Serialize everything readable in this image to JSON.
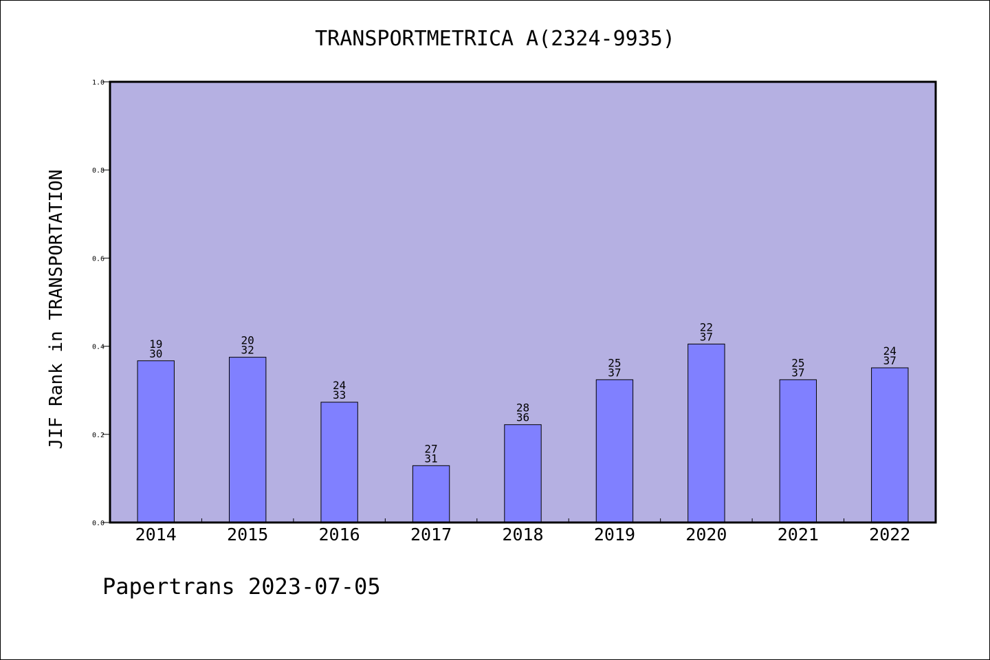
{
  "chart_data": {
    "type": "bar",
    "title": "TRANSPORTMETRICA A(2324-9935)",
    "ylabel": "JIF Rank in TRANSPORTATION",
    "xlabel": "",
    "categories": [
      "2014",
      "2015",
      "2016",
      "2017",
      "2018",
      "2019",
      "2020",
      "2021",
      "2022"
    ],
    "values": [
      0.367,
      0.375,
      0.273,
      0.129,
      0.222,
      0.324,
      0.405,
      0.324,
      0.351
    ],
    "ranks": [
      "19",
      "20",
      "24",
      "27",
      "28",
      "25",
      "22",
      "25",
      "24"
    ],
    "totals": [
      "30",
      "32",
      "33",
      "31",
      "36",
      "37",
      "37",
      "37",
      "37"
    ],
    "ylim": [
      0,
      1.0
    ],
    "yticks": [
      "0.0",
      "0.2",
      "0.4",
      "0.6",
      "0.8",
      "1.0"
    ],
    "grid": false,
    "colors": {
      "plot_background": "#b5b0e2",
      "bar_fill": "#8080ff",
      "bar_edge": "#000000"
    }
  },
  "footer": "Papertrans 2023-07-05"
}
